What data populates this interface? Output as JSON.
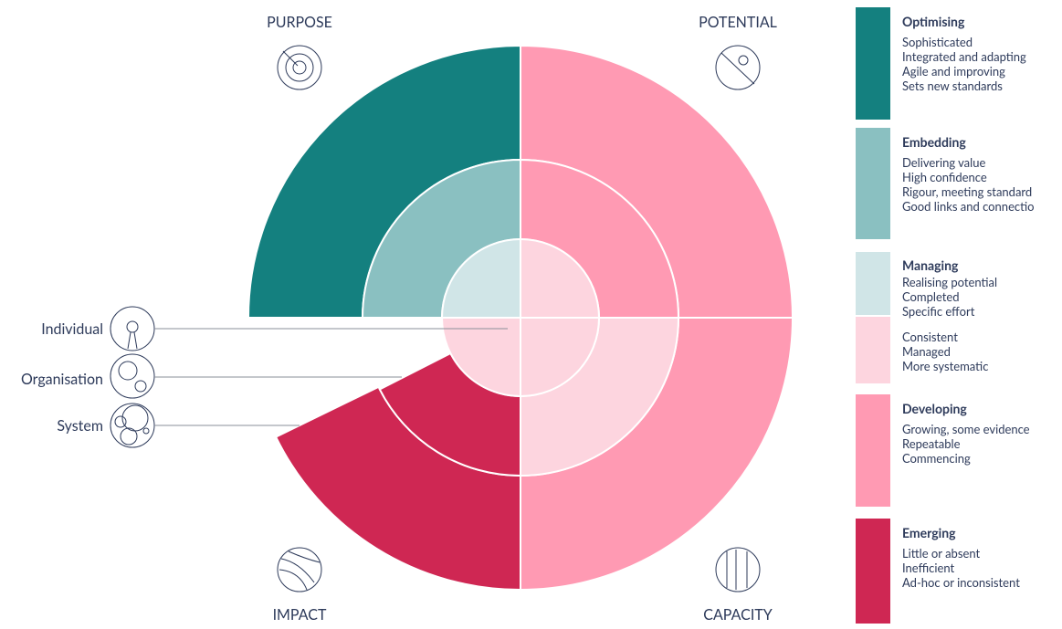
{
  "quadrants": {
    "top_left": "PURPOSE",
    "top_right": "POTENTIAL",
    "bottom_left": "IMPACT",
    "bottom_right": "CAPACITY"
  },
  "levels": [
    "Individual",
    "Organisation",
    "System"
  ],
  "legend": [
    {
      "title": "Optimising",
      "lines": [
        "Sophisticated",
        "Integrated and adapting",
        "Agile and improving",
        "Sets new standards"
      ]
    },
    {
      "title": "Embedding",
      "lines": [
        "Delivering value",
        "High confidence",
        "Rigour, meeting standard",
        "Good links and connectio"
      ]
    },
    {
      "title": "Managing",
      "lines": [
        "Realising potential",
        "Completed",
        "Specific effort"
      ]
    },
    {
      "lines": [
        "Consistent",
        "Managed",
        "More systematic"
      ]
    },
    {
      "title": "Developing",
      "lines": [
        "Growing, some evidence",
        "Repeatable",
        "Commencing"
      ]
    },
    {
      "title": "Emerging",
      "lines": [
        "Little or absent",
        "Inefficient",
        "Ad-hoc or inconsistent"
      ]
    }
  ]
}
